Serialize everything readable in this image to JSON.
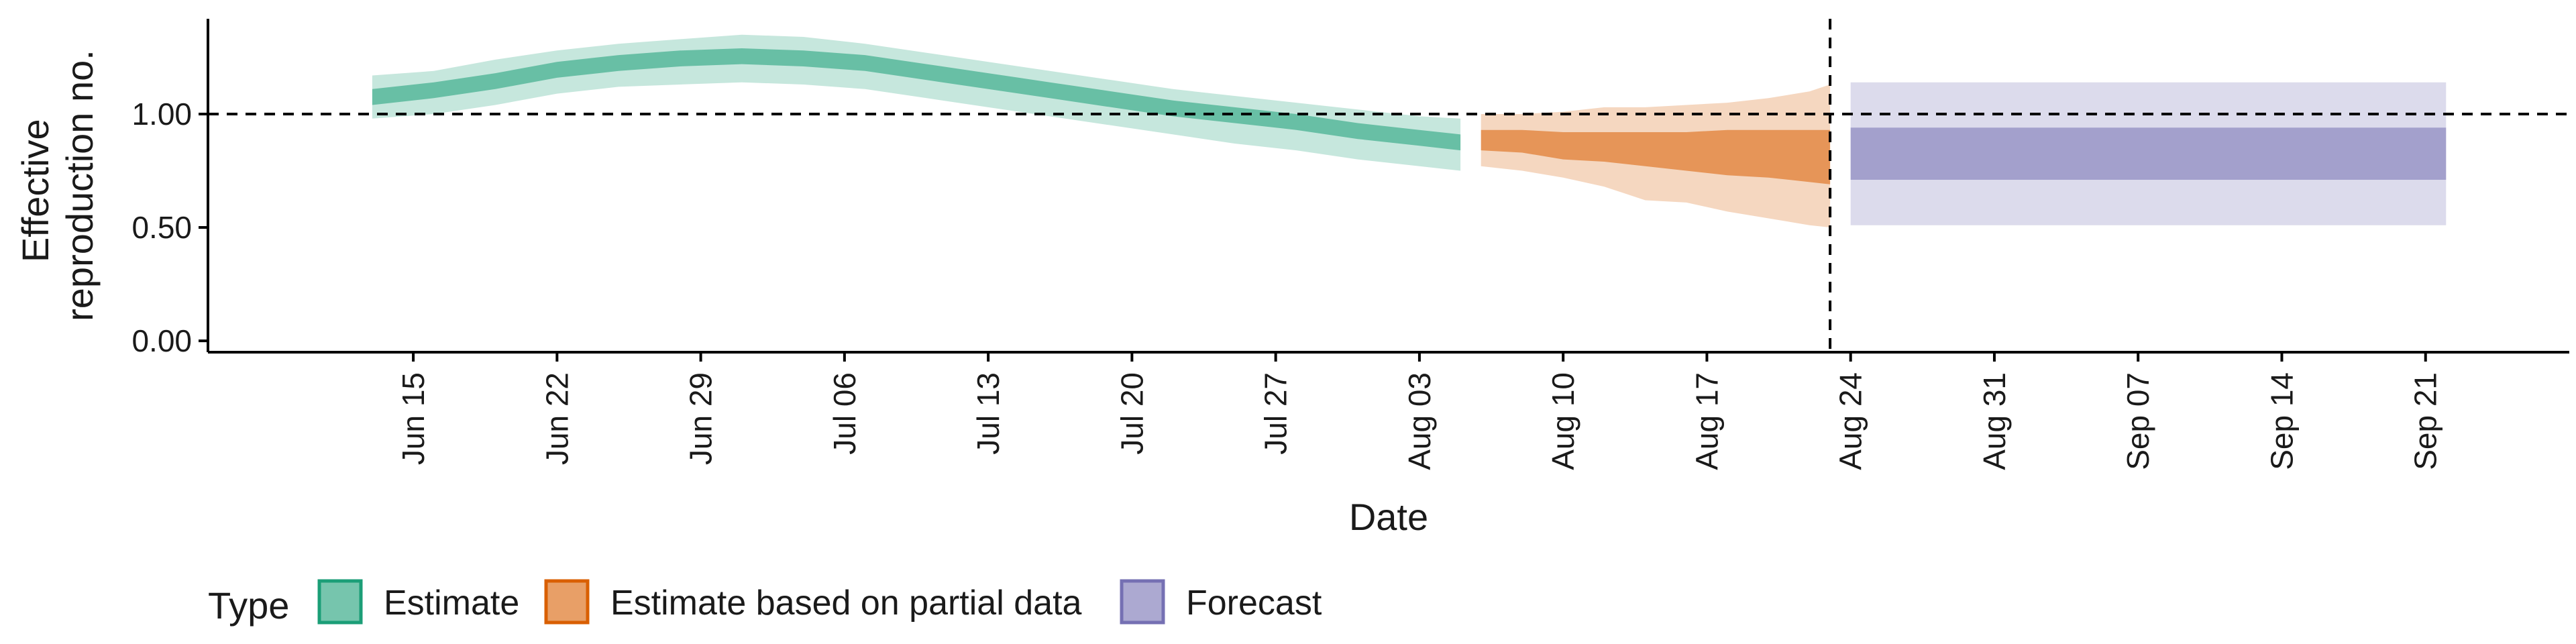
{
  "chart_data": {
    "type": "area",
    "title": "",
    "xlabel": "Date",
    "ylabel_lines": [
      "Effective",
      "reproduction no."
    ],
    "ylim": [
      -0.05,
      1.42
    ],
    "y_ticks": [
      0.0,
      0.5,
      1.0
    ],
    "y_tick_labels": [
      "0.00",
      "0.50",
      "1.00"
    ],
    "xlim": [
      "2020-06-05",
      "2020-09-28"
    ],
    "x_ticks": [
      "2020-06-15",
      "2020-06-22",
      "2020-06-29",
      "2020-07-06",
      "2020-07-13",
      "2020-07-20",
      "2020-07-27",
      "2020-08-03",
      "2020-08-10",
      "2020-08-17",
      "2020-08-24",
      "2020-08-31",
      "2020-09-07",
      "2020-09-14",
      "2020-09-21"
    ],
    "x_tick_labels": [
      "Jun 15",
      "Jun 22",
      "Jun 29",
      "Jul 06",
      "Jul 13",
      "Jul 20",
      "Jul 27",
      "Aug 03",
      "Aug 10",
      "Aug 17",
      "Aug 24",
      "Aug 31",
      "Sep 07",
      "Sep 14",
      "Sep 21"
    ],
    "reference_line_y": 1.0,
    "forecast_start_line_x": "2020-08-23",
    "grid": false,
    "legend": {
      "title": "Type",
      "position": "bottom-left",
      "entries": [
        "Estimate",
        "Estimate based on partial data",
        "Forecast"
      ]
    },
    "colors": {
      "Estimate": "#1b9e77",
      "Estimate based on partial data": "#d95f02",
      "Forecast": "#7570b3"
    },
    "series": [
      {
        "name": "Estimate",
        "x": [
          "2020-06-13",
          "2020-06-16",
          "2020-06-19",
          "2020-06-22",
          "2020-06-25",
          "2020-06-28",
          "2020-07-01",
          "2020-07-04",
          "2020-07-07",
          "2020-07-10",
          "2020-07-13",
          "2020-07-16",
          "2020-07-19",
          "2020-07-22",
          "2020-07-25",
          "2020-07-28",
          "2020-07-31",
          "2020-08-03",
          "2020-08-05"
        ],
        "lower_90": [
          0.98,
          1.0,
          1.04,
          1.09,
          1.12,
          1.13,
          1.14,
          1.13,
          1.11,
          1.07,
          1.03,
          0.99,
          0.95,
          0.91,
          0.87,
          0.84,
          0.8,
          0.77,
          0.75
        ],
        "upper_90": [
          1.17,
          1.19,
          1.24,
          1.28,
          1.31,
          1.33,
          1.35,
          1.34,
          1.31,
          1.27,
          1.23,
          1.19,
          1.15,
          1.11,
          1.08,
          1.05,
          1.02,
          0.99,
          0.98
        ],
        "lower_50": [
          1.04,
          1.07,
          1.11,
          1.16,
          1.19,
          1.21,
          1.22,
          1.21,
          1.19,
          1.15,
          1.11,
          1.07,
          1.03,
          0.99,
          0.96,
          0.93,
          0.89,
          0.86,
          0.84
        ],
        "upper_50": [
          1.11,
          1.14,
          1.18,
          1.23,
          1.26,
          1.28,
          1.29,
          1.28,
          1.26,
          1.22,
          1.18,
          1.14,
          1.1,
          1.06,
          1.03,
          1.0,
          0.96,
          0.93,
          0.91
        ]
      },
      {
        "name": "Estimate based on partial data",
        "x": [
          "2020-08-06",
          "2020-08-08",
          "2020-08-10",
          "2020-08-12",
          "2020-08-14",
          "2020-08-16",
          "2020-08-18",
          "2020-08-20",
          "2020-08-22",
          "2020-08-23"
        ],
        "lower_90": [
          0.77,
          0.75,
          0.72,
          0.68,
          0.62,
          0.61,
          0.57,
          0.54,
          0.51,
          0.5
        ],
        "upper_90": [
          1.0,
          1.0,
          1.01,
          1.03,
          1.03,
          1.04,
          1.05,
          1.07,
          1.1,
          1.13
        ],
        "lower_50": [
          0.84,
          0.83,
          0.8,
          0.79,
          0.77,
          0.75,
          0.73,
          0.72,
          0.7,
          0.69
        ],
        "upper_50": [
          0.93,
          0.93,
          0.92,
          0.92,
          0.92,
          0.92,
          0.93,
          0.93,
          0.93,
          0.93
        ]
      },
      {
        "name": "Forecast",
        "x": [
          "2020-08-24",
          "2020-09-22"
        ],
        "lower_90": [
          0.51,
          0.51
        ],
        "upper_90": [
          1.14,
          1.14
        ],
        "lower_50": [
          0.71,
          0.71
        ],
        "upper_50": [
          0.94,
          0.94
        ]
      }
    ]
  }
}
